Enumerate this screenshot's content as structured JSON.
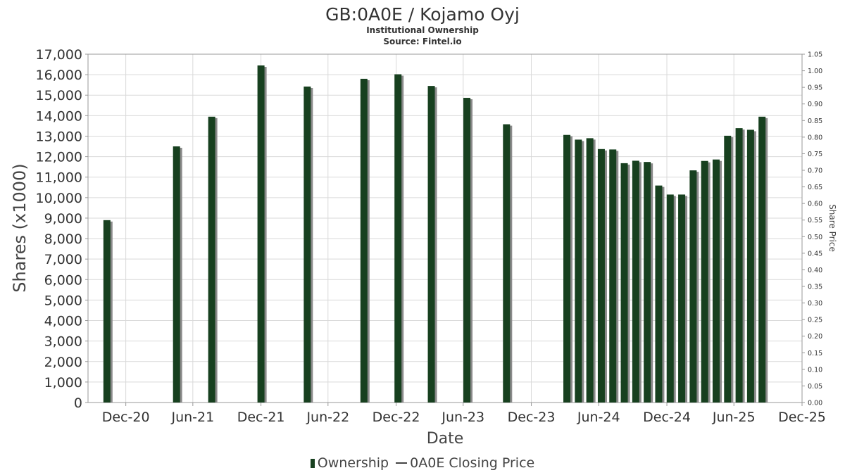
{
  "header": {
    "title": "GB:0A0E / Kojamo Oyj",
    "subtitle": "Institutional Ownership",
    "source": "Source: Fintel.io"
  },
  "legend": {
    "ownership": "Ownership",
    "closing_price": "0A0E Closing Price"
  },
  "colors": {
    "bar": "#17401f",
    "bar_shadow": "#8a8a8a",
    "grid": "#d9d9d9",
    "axis": "#999999"
  },
  "chart_data": {
    "type": "bar",
    "title": "GB:0A0E / Kojamo Oyj",
    "subtitle": "Institutional Ownership",
    "xlabel": "Date",
    "ylabel": "Shares (x1000)",
    "y2label": "Share Price",
    "ylim": [
      0,
      17000
    ],
    "y2lim": [
      0,
      1.05
    ],
    "xlim": [
      "2020-09-20",
      "2025-12-31"
    ],
    "grid": true,
    "legend_position": "bottom",
    "y_ticks": [
      "0",
      "1,000",
      "2,000",
      "3,000",
      "4,000",
      "5,000",
      "6,000",
      "7,000",
      "8,000",
      "9,000",
      "10,000",
      "11,000",
      "12,000",
      "13,000",
      "14,000",
      "15,000",
      "16,000",
      "17,000"
    ],
    "y2_ticks": [
      "0.00",
      "0.05",
      "0.10",
      "0.15",
      "0.20",
      "0.25",
      "0.30",
      "0.35",
      "0.40",
      "0.45",
      "0.50",
      "0.55",
      "0.60",
      "0.65",
      "0.70",
      "0.75",
      "0.80",
      "0.85",
      "0.90",
      "0.95",
      "1.00",
      "1.05"
    ],
    "x_ticks": [
      {
        "label": "Dec-20",
        "date": "2020-12-31"
      },
      {
        "label": "Jun-21",
        "date": "2021-06-30"
      },
      {
        "label": "Dec-21",
        "date": "2021-12-31"
      },
      {
        "label": "Jun-22",
        "date": "2022-06-30"
      },
      {
        "label": "Dec-22",
        "date": "2022-12-31"
      },
      {
        "label": "Jun-23",
        "date": "2023-06-30"
      },
      {
        "label": "Dec-23",
        "date": "2023-12-31"
      },
      {
        "label": "Jun-24",
        "date": "2024-06-30"
      },
      {
        "label": "Dec-24",
        "date": "2024-12-31"
      },
      {
        "label": "Jun-25",
        "date": "2025-06-30"
      },
      {
        "label": "Dec-25",
        "date": "2025-12-31"
      }
    ],
    "series": [
      {
        "name": "Ownership",
        "points": [
          {
            "date": "2020-11-10",
            "value": 8900
          },
          {
            "date": "2021-05-17",
            "value": 12500
          },
          {
            "date": "2021-08-20",
            "value": 13950
          },
          {
            "date": "2021-12-31",
            "value": 16450
          },
          {
            "date": "2022-05-05",
            "value": 15420
          },
          {
            "date": "2022-10-05",
            "value": 15800
          },
          {
            "date": "2023-01-05",
            "value": 16020
          },
          {
            "date": "2023-04-05",
            "value": 15450
          },
          {
            "date": "2023-07-10",
            "value": 14870
          },
          {
            "date": "2023-10-25",
            "value": 13580
          },
          {
            "date": "2024-04-05",
            "value": 13060
          },
          {
            "date": "2024-05-06",
            "value": 12830
          },
          {
            "date": "2024-06-06",
            "value": 12900
          },
          {
            "date": "2024-07-07",
            "value": 12370
          },
          {
            "date": "2024-08-07",
            "value": 12350
          },
          {
            "date": "2024-09-07",
            "value": 11680
          },
          {
            "date": "2024-10-08",
            "value": 11800
          },
          {
            "date": "2024-11-08",
            "value": 11740
          },
          {
            "date": "2024-12-09",
            "value": 10590
          },
          {
            "date": "2025-01-09",
            "value": 10150
          },
          {
            "date": "2025-02-09",
            "value": 10150
          },
          {
            "date": "2025-03-12",
            "value": 11330
          },
          {
            "date": "2025-04-12",
            "value": 11790
          },
          {
            "date": "2025-05-13",
            "value": 11860
          },
          {
            "date": "2025-06-13",
            "value": 13020
          },
          {
            "date": "2025-07-14",
            "value": 13390
          },
          {
            "date": "2025-08-14",
            "value": 13310
          },
          {
            "date": "2025-09-14",
            "value": 13950
          }
        ]
      },
      {
        "name": "0A0E Closing Price",
        "points": []
      }
    ]
  }
}
